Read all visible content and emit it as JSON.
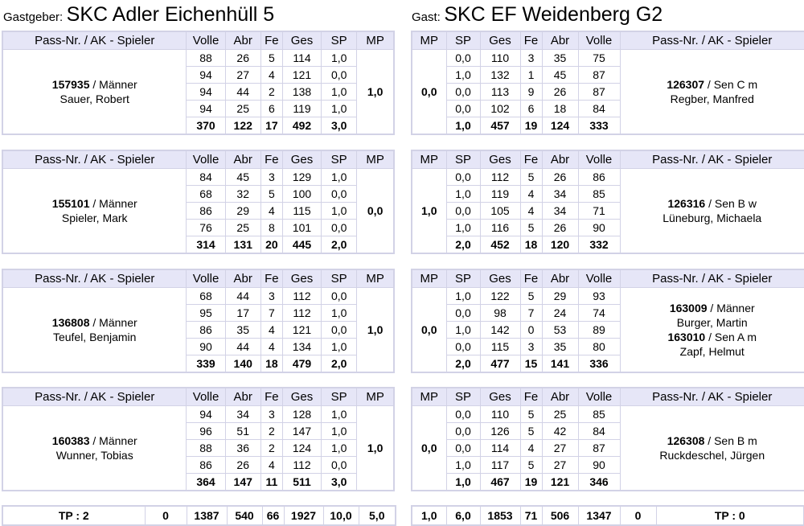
{
  "host": {
    "label": "Gastgeber:",
    "name": "SKC Adler Eichenhüll 5"
  },
  "guest": {
    "label": "Gast:",
    "name": "SKC EF Weidenberg G2"
  },
  "headers": {
    "player": "Pass-Nr. / AK - Spieler",
    "volle": "Volle",
    "abr": "Abr",
    "fe": "Fe",
    "ges": "Ges",
    "sp": "SP",
    "mp": "MP"
  },
  "host_blocks": [
    {
      "players": [
        {
          "pass": "157935",
          "ak": " / Männer",
          "name": "Sauer, Robert"
        }
      ],
      "mp": "1,0",
      "rows": [
        [
          "88",
          "26",
          "5",
          "114",
          "1,0"
        ],
        [
          "94",
          "27",
          "4",
          "121",
          "0,0"
        ],
        [
          "94",
          "44",
          "2",
          "138",
          "1,0"
        ],
        [
          "94",
          "25",
          "6",
          "119",
          "1,0"
        ]
      ],
      "total": [
        "370",
        "122",
        "17",
        "492",
        "3,0"
      ]
    },
    {
      "players": [
        {
          "pass": "155101",
          "ak": " / Männer",
          "name": "Spieler, Mark"
        }
      ],
      "mp": "0,0",
      "rows": [
        [
          "84",
          "45",
          "3",
          "129",
          "1,0"
        ],
        [
          "68",
          "32",
          "5",
          "100",
          "0,0"
        ],
        [
          "86",
          "29",
          "4",
          "115",
          "1,0"
        ],
        [
          "76",
          "25",
          "8",
          "101",
          "0,0"
        ]
      ],
      "total": [
        "314",
        "131",
        "20",
        "445",
        "2,0"
      ]
    },
    {
      "players": [
        {
          "pass": "136808",
          "ak": " / Männer",
          "name": "Teufel, Benjamin"
        }
      ],
      "mp": "1,0",
      "rows": [
        [
          "68",
          "44",
          "3",
          "112",
          "0,0"
        ],
        [
          "95",
          "17",
          "7",
          "112",
          "1,0"
        ],
        [
          "86",
          "35",
          "4",
          "121",
          "0,0"
        ],
        [
          "90",
          "44",
          "4",
          "134",
          "1,0"
        ]
      ],
      "total": [
        "339",
        "140",
        "18",
        "479",
        "2,0"
      ]
    },
    {
      "players": [
        {
          "pass": "160383",
          "ak": " / Männer",
          "name": "Wunner, Tobias"
        }
      ],
      "mp": "1,0",
      "rows": [
        [
          "94",
          "34",
          "3",
          "128",
          "1,0"
        ],
        [
          "96",
          "51",
          "2",
          "147",
          "1,0"
        ],
        [
          "88",
          "36",
          "2",
          "124",
          "1,0"
        ],
        [
          "86",
          "26",
          "4",
          "112",
          "0,0"
        ]
      ],
      "total": [
        "364",
        "147",
        "11",
        "511",
        "3,0"
      ]
    }
  ],
  "guest_blocks": [
    {
      "players": [
        {
          "pass": "126307",
          "ak": " / Sen C m",
          "name": "Regber, Manfred"
        }
      ],
      "mp": "0,0",
      "rows": [
        [
          "0,0",
          "110",
          "3",
          "35",
          "75"
        ],
        [
          "1,0",
          "132",
          "1",
          "45",
          "87"
        ],
        [
          "0,0",
          "113",
          "9",
          "26",
          "87"
        ],
        [
          "0,0",
          "102",
          "6",
          "18",
          "84"
        ]
      ],
      "total": [
        "1,0",
        "457",
        "19",
        "124",
        "333"
      ]
    },
    {
      "players": [
        {
          "pass": "126316",
          "ak": " / Sen B w",
          "name": "Lüneburg, Michaela"
        }
      ],
      "mp": "1,0",
      "rows": [
        [
          "0,0",
          "112",
          "5",
          "26",
          "86"
        ],
        [
          "1,0",
          "119",
          "4",
          "34",
          "85"
        ],
        [
          "0,0",
          "105",
          "4",
          "34",
          "71"
        ],
        [
          "1,0",
          "116",
          "5",
          "26",
          "90"
        ]
      ],
      "total": [
        "2,0",
        "452",
        "18",
        "120",
        "332"
      ]
    },
    {
      "players": [
        {
          "pass": "163009",
          "ak": " / Männer",
          "name": "Burger, Martin"
        },
        {
          "pass": "163010",
          "ak": " / Sen A m",
          "name": "Zapf, Helmut"
        }
      ],
      "mp": "0,0",
      "rows": [
        [
          "1,0",
          "122",
          "5",
          "29",
          "93"
        ],
        [
          "0,0",
          "98",
          "7",
          "24",
          "74"
        ],
        [
          "1,0",
          "142",
          "0",
          "53",
          "89"
        ],
        [
          "0,0",
          "115",
          "3",
          "35",
          "80"
        ]
      ],
      "total": [
        "2,0",
        "477",
        "15",
        "141",
        "336"
      ]
    },
    {
      "players": [
        {
          "pass": "126308",
          "ak": " / Sen B m",
          "name": "Ruckdeschel, Jürgen"
        }
      ],
      "mp": "0,0",
      "rows": [
        [
          "0,0",
          "110",
          "5",
          "25",
          "85"
        ],
        [
          "0,0",
          "126",
          "5",
          "42",
          "84"
        ],
        [
          "0,0",
          "114",
          "4",
          "27",
          "87"
        ],
        [
          "1,0",
          "117",
          "5",
          "27",
          "90"
        ]
      ],
      "total": [
        "1,0",
        "467",
        "19",
        "121",
        "346"
      ]
    }
  ],
  "host_footer": {
    "tp": "TP : 2",
    "c1": "0",
    "volle": "1387",
    "abr": "540",
    "fe": "66",
    "ges": "1927",
    "sp": "10,0",
    "mp": "5,0"
  },
  "guest_footer": {
    "mp": "1,0",
    "sp": "6,0",
    "ges": "1853",
    "fe": "71",
    "abr": "506",
    "volle": "1347",
    "c1": "0",
    "tp": "TP : 0"
  }
}
